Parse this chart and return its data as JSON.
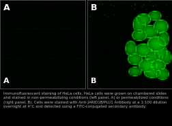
{
  "background_color": "#000000",
  "panel_a_label": "A",
  "panel_b_label": "B",
  "caption": "Immunofluorescent staining of HeLa cells. HeLa cells were grown on chambered slides and stained in non-permeabilizing conditions (left panel, A) or permeabilized conditions (right panel, B). Cells were stained with Anti-JARID1B/PLU1 Antibody at a 1:100 dilution overnight at 4°C and detected using a FITC-conjugated secondary antibody.",
  "fig_bg": "#000000",
  "text_color": "#ffffff",
  "caption_color": "#bbbbbb",
  "caption_fontsize": 4.0,
  "label_fontsize": 9,
  "panel_divider_color": "#666666",
  "fig_width": 2.53,
  "fig_height": 1.85
}
